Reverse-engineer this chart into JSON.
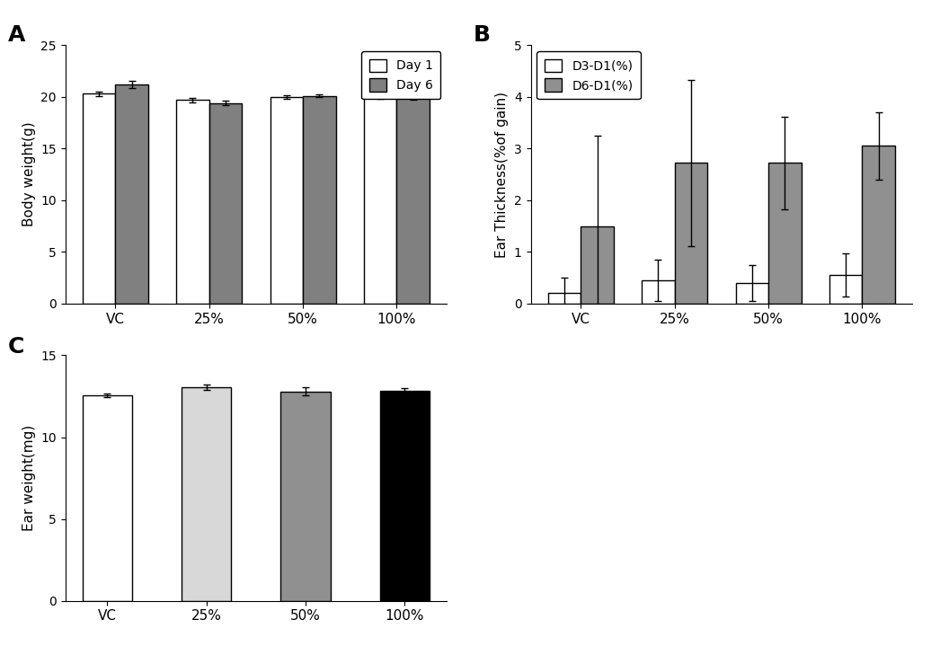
{
  "categories": [
    "VC",
    "25%",
    "50%",
    "100%"
  ],
  "A": {
    "title": "A",
    "ylabel": "Body weight(g)",
    "ylim": [
      0,
      25
    ],
    "yticks": [
      0,
      5,
      10,
      15,
      20,
      25
    ],
    "day1_values": [
      20.3,
      19.7,
      20.0,
      20.0
    ],
    "day1_errors": [
      0.2,
      0.2,
      0.2,
      0.15
    ],
    "day6_values": [
      21.2,
      19.4,
      20.1,
      19.9
    ],
    "day6_errors": [
      0.35,
      0.2,
      0.15,
      0.2
    ],
    "day1_color": "#ffffff",
    "day6_color": "#808080",
    "legend_labels": [
      "Day 1",
      "Day 6"
    ]
  },
  "B": {
    "title": "B",
    "ylabel": "Ear Thickness(%of gain)",
    "ylim": [
      0,
      5
    ],
    "yticks": [
      0,
      1,
      2,
      3,
      4,
      5
    ],
    "d3d1_values": [
      0.2,
      0.45,
      0.4,
      0.55
    ],
    "d3d1_errors": [
      0.3,
      0.4,
      0.35,
      0.42
    ],
    "d6d1_values": [
      1.5,
      2.72,
      2.72,
      3.05
    ],
    "d6d1_errors": [
      1.75,
      1.6,
      0.9,
      0.65
    ],
    "d3d1_color": "#ffffff",
    "d6d1_color": "#909090",
    "legend_labels": [
      "D3-D1(%)",
      "D6-D1(%)"
    ]
  },
  "C": {
    "title": "C",
    "ylabel": "Ear weight(mg)",
    "ylim": [
      0,
      15
    ],
    "yticks": [
      0,
      5,
      10,
      15
    ],
    "values": [
      12.55,
      13.05,
      12.8,
      12.85
    ],
    "errors": [
      0.12,
      0.18,
      0.25,
      0.12
    ],
    "colors": [
      "#ffffff",
      "#d8d8d8",
      "#909090",
      "#000000"
    ],
    "edge_colors": [
      "#000000",
      "#000000",
      "#000000",
      "#000000"
    ]
  },
  "bar_edge_color": "#000000",
  "bar_width": 0.35,
  "background_color": "#ffffff",
  "text_color": "#000000"
}
